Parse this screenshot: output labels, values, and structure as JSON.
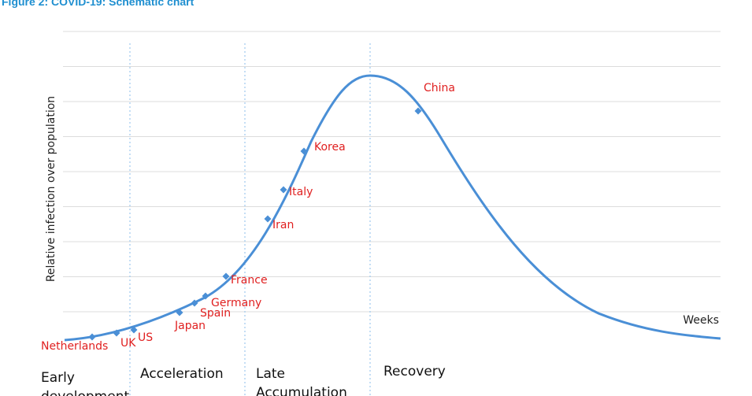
{
  "figure": {
    "title": "Figure 2: COVID-19: Schematic chart"
  },
  "chart_data": {
    "type": "line",
    "title": "Figure 2: COVID-19: Schematic chart",
    "xlabel": "Weeks",
    "ylabel": "Relative infection over population",
    "grid": true,
    "points": [
      {
        "label": "Netherlands"
      },
      {
        "label": "UK"
      },
      {
        "label": "US"
      },
      {
        "label": "Japan"
      },
      {
        "label": "Spain"
      },
      {
        "label": "Germany"
      },
      {
        "label": "France"
      },
      {
        "label": "Iran"
      },
      {
        "label": "Italy"
      },
      {
        "label": "Korea"
      },
      {
        "label": "China"
      }
    ],
    "phases": [
      "Early development",
      "Acceleration",
      "Late Accumulation",
      "Recovery"
    ]
  }
}
